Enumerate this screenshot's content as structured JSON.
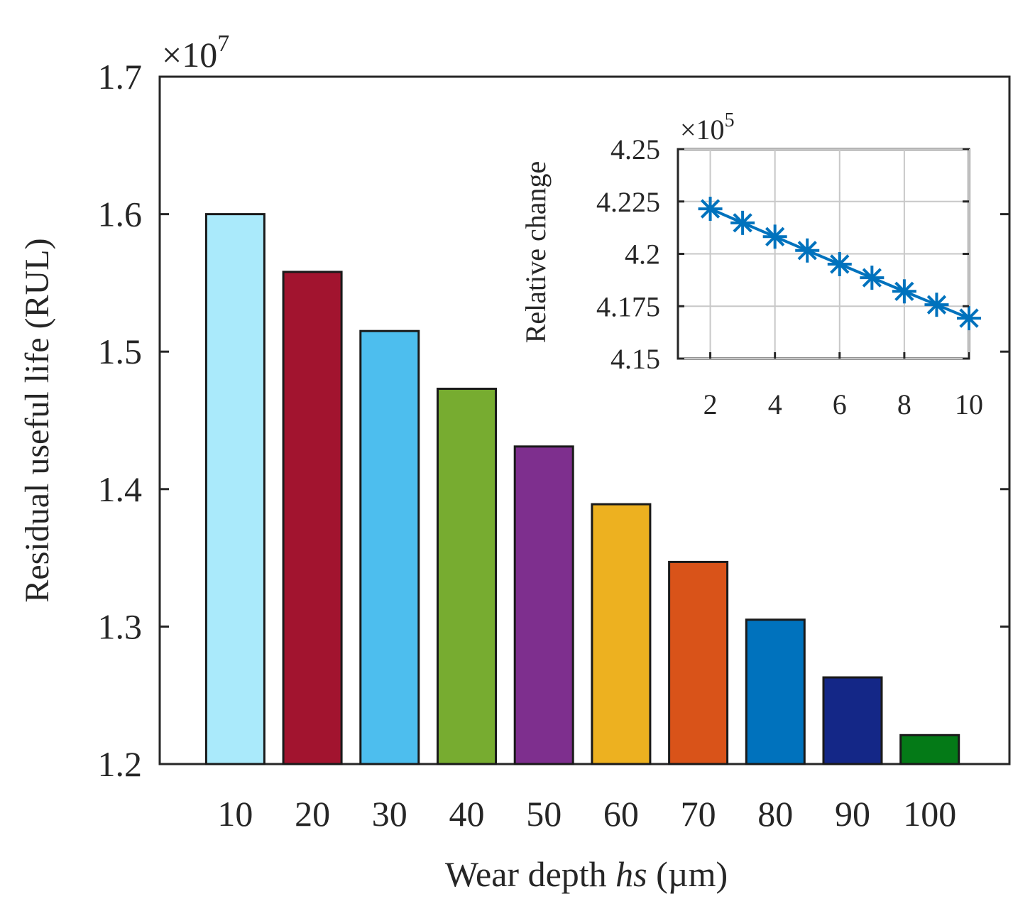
{
  "chart_data": [
    {
      "type": "bar",
      "xlabel_prefix": "Wear depth ",
      "xlabel_italic": "hs",
      "xlabel_suffix": " (µm)",
      "ylabel": "Residual useful life (RUL)",
      "exponent_label": "×10",
      "exponent_power": "7",
      "categories": [
        "10",
        "20",
        "30",
        "40",
        "50",
        "60",
        "70",
        "80",
        "90",
        "100"
      ],
      "values": [
        1.6,
        1.558,
        1.515,
        1.473,
        1.431,
        1.389,
        1.347,
        1.305,
        1.263,
        1.221
      ],
      "value_scale": 10000000,
      "colors": [
        "#aaeafb",
        "#a2142f",
        "#4dbeee",
        "#77ac30",
        "#7e2f8e",
        "#edb120",
        "#d95319",
        "#0072bd",
        "#142787",
        "#047a17"
      ],
      "ylim": [
        1.2,
        1.7
      ],
      "yticks": [
        "1.2",
        "1.3",
        "1.4",
        "1.5",
        "1.6",
        "1.7"
      ],
      "ytick_values": [
        1.2,
        1.3,
        1.4,
        1.5,
        1.6,
        1.7
      ]
    },
    {
      "type": "line",
      "role": "inset",
      "ylabel": "Relative change",
      "exponent_label": "×10",
      "exponent_power": "5",
      "x": [
        2,
        3,
        4,
        5,
        6,
        7,
        8,
        9,
        10
      ],
      "y": [
        4.2215,
        4.2148,
        4.2082,
        4.2016,
        4.1951,
        4.1886,
        4.1821,
        4.1757,
        4.1693
      ],
      "value_scale": 100000,
      "marker": "*",
      "color": "#0072bd",
      "xlim": [
        1,
        10
      ],
      "ylim": [
        4.15,
        4.25
      ],
      "xticks": [
        "2",
        "4",
        "6",
        "8",
        "10"
      ],
      "xtick_values": [
        2,
        4,
        6,
        8,
        10
      ],
      "yticks": [
        "4.15",
        "4.175",
        "4.2",
        "4.225",
        "4.25"
      ],
      "ytick_values": [
        4.15,
        4.175,
        4.2,
        4.225,
        4.25
      ],
      "grid": true
    }
  ]
}
